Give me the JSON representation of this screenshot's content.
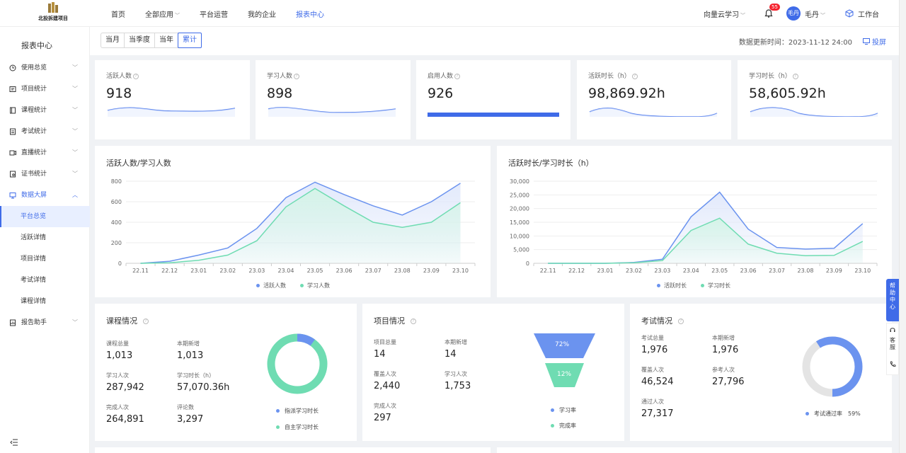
{
  "brand": {
    "logo_text": "北投拆建项目"
  },
  "nav": {
    "items": [
      {
        "label": "首页"
      },
      {
        "label": "全部应用"
      },
      {
        "label": "平台运营"
      },
      {
        "label": "我的企业"
      },
      {
        "label": "报表中心"
      }
    ],
    "active": "报表中心"
  },
  "top_right": {
    "org": "向量云学习",
    "notification_count": "55",
    "avatar_text": "毛丹",
    "user_name": "毛丹",
    "workbench": "工作台"
  },
  "sidebar": {
    "title": "报表中心",
    "items": [
      {
        "label": "使用总览",
        "icon": "clock-icon"
      },
      {
        "label": "项目统计",
        "icon": "project-icon"
      },
      {
        "label": "课程统计",
        "icon": "book-icon"
      },
      {
        "label": "考试统计",
        "icon": "exam-icon"
      },
      {
        "label": "直播统计",
        "icon": "live-icon"
      },
      {
        "label": "证书统计",
        "icon": "certificate-icon"
      },
      {
        "label": "数据大屏",
        "icon": "monitor-icon"
      }
    ],
    "sub_items": [
      {
        "label": "平台总览"
      },
      {
        "label": "活跃详情"
      },
      {
        "label": "项目详情"
      },
      {
        "label": "考试详情"
      },
      {
        "label": "课程详情"
      }
    ],
    "last_item": {
      "label": "报告助手",
      "icon": "report-icon"
    }
  },
  "filter": {
    "options": [
      "当月",
      "当季度",
      "当年",
      "累计"
    ],
    "selected": "累计",
    "updated_text": "数据更新时间：2023-11-12 24:00",
    "cast_label": "投屏"
  },
  "stats": [
    {
      "label": "活跃人数",
      "value": "918"
    },
    {
      "label": "学习人数",
      "value": "898"
    },
    {
      "label": "启用人数",
      "value": "926"
    },
    {
      "label": "活跃时长（h）",
      "value": "98,869.92h"
    },
    {
      "label": "学习时长（h）",
      "value": "58,605.92h"
    }
  ],
  "colors": {
    "accent": "#3f6be8",
    "series_blue": "#6b93ef",
    "series_green": "#6fdcb2",
    "gray_ring": "#e4e4e4"
  },
  "chart_data": [
    {
      "type": "area",
      "title": "活跃人数/学习人数",
      "categories": [
        "22.11",
        "22.12",
        "23.01",
        "23.02",
        "23.03",
        "23.04",
        "23.05",
        "23.06",
        "23.07",
        "23.08",
        "23.09",
        "23.10"
      ],
      "y_ticks": [
        "0",
        "200",
        "400",
        "600",
        "800"
      ],
      "ylim": [
        0,
        800
      ],
      "series": [
        {
          "name": "活跃人数",
          "values": [
            0,
            20,
            80,
            150,
            340,
            640,
            790,
            670,
            560,
            470,
            600,
            780
          ]
        },
        {
          "name": "学习人数",
          "values": [
            0,
            5,
            30,
            80,
            220,
            550,
            730,
            560,
            400,
            350,
            400,
            590
          ]
        }
      ],
      "legend": "bottom"
    },
    {
      "type": "area",
      "title": "活跃时长/学习时长（h）",
      "categories": [
        "22.11",
        "22.12",
        "23.01",
        "23.02",
        "23.03",
        "23.04",
        "23.05",
        "23.06",
        "23.07",
        "23.08",
        "23.09",
        "23.10"
      ],
      "y_ticks": [
        "0",
        "5,000",
        "10,000",
        "15,000",
        "20,000",
        "25,000",
        "30,000"
      ],
      "ylim": [
        0,
        30000
      ],
      "series": [
        {
          "name": "活跃时长",
          "values": [
            0,
            0,
            0,
            300,
            1500,
            17000,
            26000,
            12500,
            5800,
            5200,
            5500,
            14500
          ]
        },
        {
          "name": "学习时长",
          "values": [
            0,
            0,
            0,
            200,
            1000,
            12000,
            16500,
            7000,
            3700,
            2800,
            2900,
            8000
          ]
        }
      ],
      "legend": "bottom"
    }
  ],
  "course_panel": {
    "title": "课程情况",
    "fields": [
      {
        "label": "课程总量",
        "value": "1,013"
      },
      {
        "label": "本期新增",
        "value": "1,013"
      },
      {
        "label": "学习人次",
        "value": "287,942"
      },
      {
        "label": "学习时长（h）",
        "value": "57,070.36h"
      },
      {
        "label": "完成人次",
        "value": "264,891"
      },
      {
        "label": "评论数",
        "value": "3,297"
      }
    ],
    "legend": [
      {
        "name": "指派学习时长",
        "color": "#6b93ef",
        "share": 0.1
      },
      {
        "name": "自主学习时长",
        "color": "#6fdcb2",
        "share": 0.9
      }
    ]
  },
  "project_panel": {
    "title": "项目情况",
    "fields": [
      {
        "label": "项目总量",
        "value": "14"
      },
      {
        "label": "本期新增",
        "value": "14"
      },
      {
        "label": "覆盖人次",
        "value": "2,440"
      },
      {
        "label": "学习人次",
        "value": "1,753"
      },
      {
        "label": "完成人次",
        "value": "297"
      }
    ],
    "funnel": [
      {
        "name": "学习率",
        "label": "72%",
        "color": "#6b93ef"
      },
      {
        "name": "完成率",
        "label": "12%",
        "color": "#6fdcb2"
      }
    ]
  },
  "exam_panel": {
    "title": "考试情况",
    "fields": [
      {
        "label": "考试总量",
        "value": "1,976"
      },
      {
        "label": "本期新增",
        "value": "1,976"
      },
      {
        "label": "覆盖人次",
        "value": "46,524"
      },
      {
        "label": "参考人次",
        "value": "27,796"
      },
      {
        "label": "通过人次",
        "value": "27,317"
      }
    ],
    "pass_rate_label": "考试通过率",
    "pass_rate": "59%",
    "pass_rate_value": 0.59
  },
  "help_tab": {
    "label": "帮助中心"
  },
  "service_tab": {
    "label": "客服"
  }
}
